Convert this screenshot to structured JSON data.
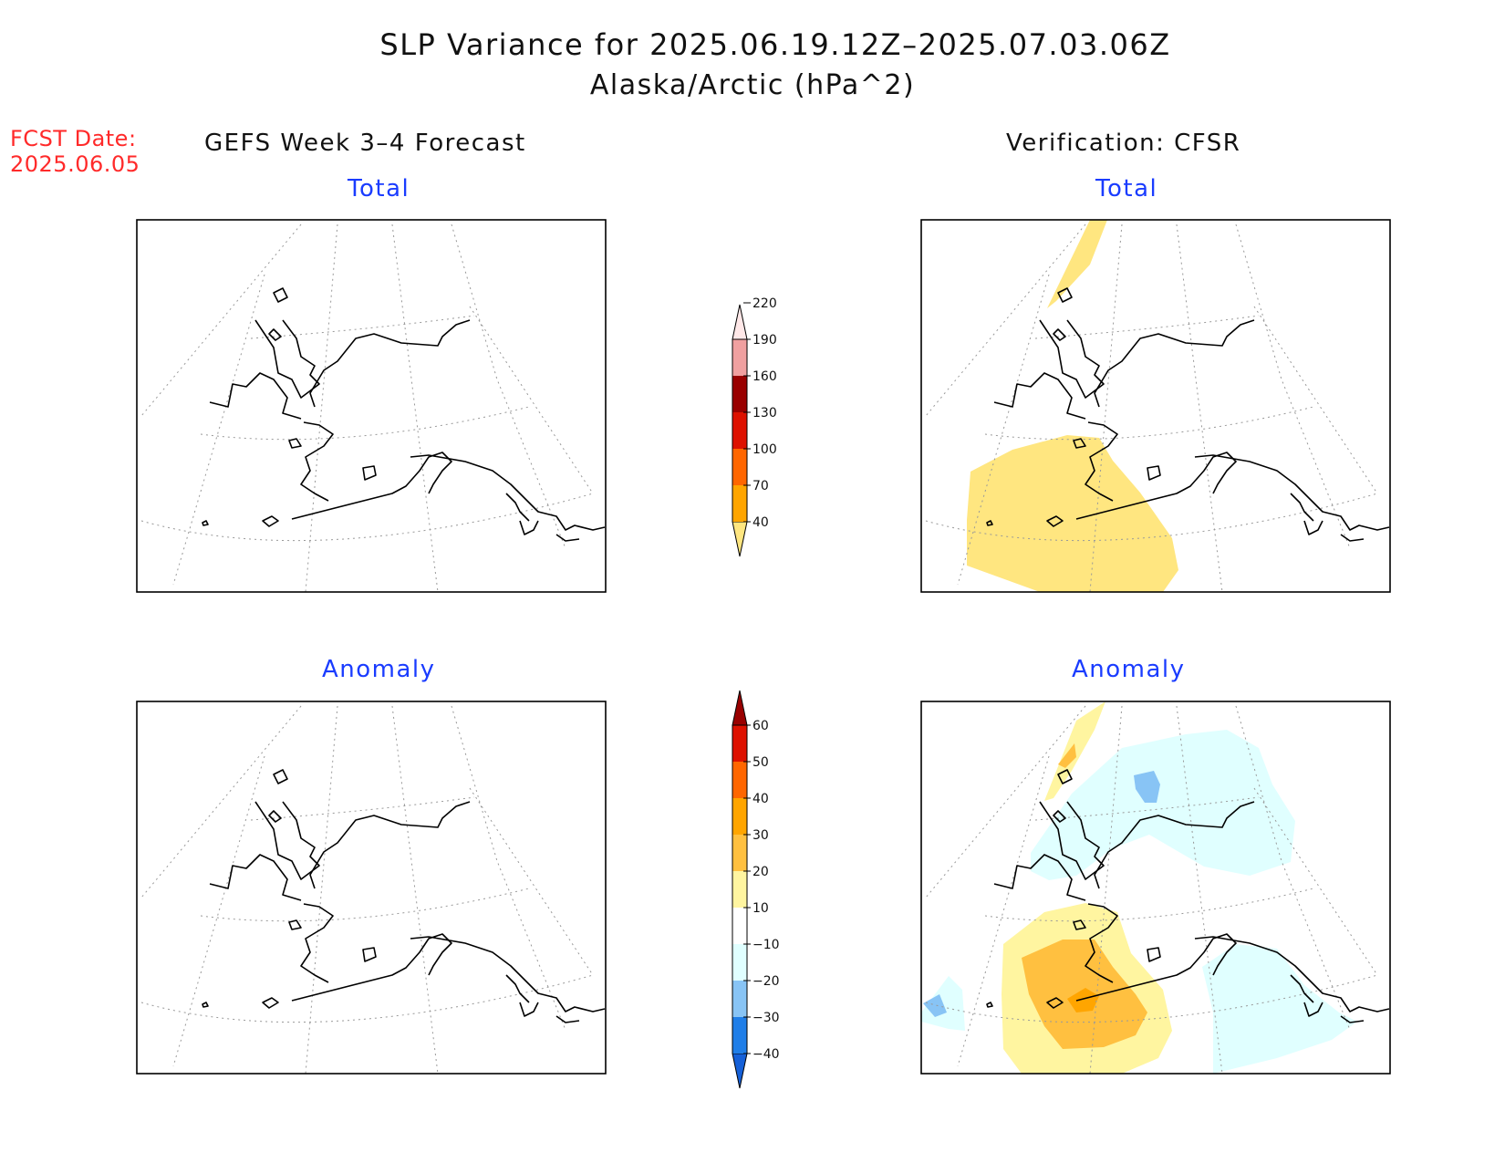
{
  "title": "SLP Variance for 2025.06.19.12Z–2025.07.03.06Z",
  "subtitle": "Alaska/Arctic (hPa^2)",
  "fcst_label": "FCST Date:",
  "fcst_date": "2025.06.05",
  "left_header": "GEFS Week 3–4 Forecast",
  "right_header": "Verification: CFSR",
  "panels": {
    "top_left": "Total",
    "top_right": "Total",
    "bottom_left": "Anomaly",
    "bottom_right": "Anomaly"
  },
  "total_colorbar": {
    "levels": [
      "40",
      "70",
      "100",
      "130",
      "160",
      "190",
      "220"
    ],
    "colors": [
      "#ffe680",
      "#ffa500",
      "#ff6600",
      "#dd1100",
      "#990000",
      "#f0a0a0",
      "#ffe8e8"
    ]
  },
  "anomaly_colorbar": {
    "levels": [
      "−40",
      "−30",
      "−20",
      "−10",
      "10",
      "20",
      "30",
      "40",
      "50",
      "60"
    ],
    "colors": [
      "#1560d8",
      "#1f7ee8",
      "#88c4f5",
      "#e0ffff",
      "#ffffff",
      "#fff5a0",
      "#ffc040",
      "#ffa500",
      "#ff6600",
      "#dd1100",
      "#990000"
    ]
  },
  "fill_colors": {
    "total_40_70": "#ffe680",
    "anom_10_20": "#fff5a0",
    "anom_20_30": "#ffc040",
    "anom_30_40": "#ffa500",
    "anom_neg_10_20": "#e0ffff",
    "anom_neg_20_30": "#88c4f5"
  }
}
